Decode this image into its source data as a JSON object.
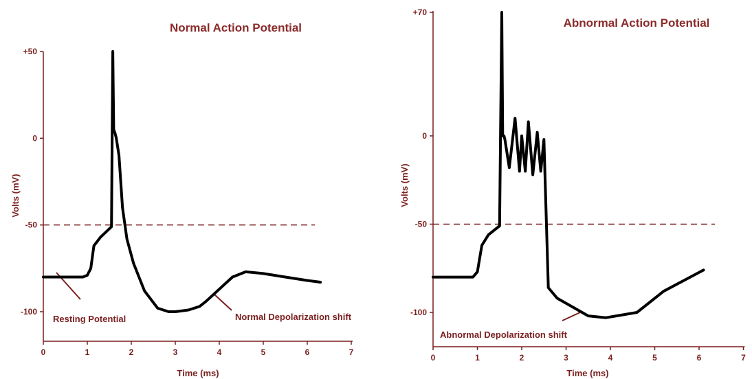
{
  "colors": {
    "axis": "#7a1f1f",
    "title": "#8b2a2a",
    "trace": "#000000",
    "threshold": "#7a1f1f"
  },
  "chart_data": [
    {
      "type": "line",
      "title": "Normal Action Potential",
      "xlabel": "Time (ms)",
      "ylabel": "Volts (mV)",
      "xlim": [
        0,
        7
      ],
      "ylim": [
        -120,
        50
      ],
      "x_ticks": [
        "0",
        "1",
        "2",
        "3",
        "4",
        "5",
        "6",
        "7"
      ],
      "y_ticks": [
        {
          "value": 50,
          "label": "+50"
        },
        {
          "value": 0,
          "label": "0"
        },
        {
          "value": -50,
          "label": "-50"
        },
        {
          "value": -100,
          "label": "-100"
        }
      ],
      "threshold": -50,
      "grid": false,
      "series": [
        {
          "x": [
            0,
            0.9,
            1.0,
            1.08,
            1.15,
            1.3,
            1.55,
            1.58,
            1.6,
            1.63,
            1.66,
            1.72,
            1.8,
            1.9,
            2.05,
            2.3,
            2.6,
            2.85,
            3.0,
            3.3,
            3.55,
            3.7,
            4.0,
            4.3,
            4.6,
            5.0,
            5.5,
            6.0,
            6.3
          ],
          "y": [
            -80,
            -80,
            -79,
            -75,
            -62,
            -57,
            -51,
            50,
            5,
            3,
            0,
            -10,
            -40,
            -58,
            -72,
            -88,
            -98,
            -100,
            -100,
            -99,
            -97,
            -94,
            -87,
            -80,
            -77,
            -78,
            -80,
            -82,
            -83
          ]
        }
      ],
      "annotations": [
        "Resting Potential",
        "Normal Depolarization shift"
      ]
    },
    {
      "type": "line",
      "title": "Abnormal Action Potential",
      "xlabel": "Time (ms)",
      "ylabel": "Volts (mV)",
      "xlim": [
        0,
        7
      ],
      "ylim": [
        -120,
        70
      ],
      "x_ticks": [
        "0",
        "1",
        "2",
        "3",
        "4",
        "5",
        "6",
        "7"
      ],
      "y_ticks": [
        {
          "value": 70,
          "label": "+70"
        },
        {
          "value": 0,
          "label": "0"
        },
        {
          "value": -50,
          "label": "-50"
        },
        {
          "value": -100,
          "label": "-100"
        }
      ],
      "threshold": -50,
      "grid": false,
      "series": [
        {
          "x": [
            0,
            0.9,
            1.0,
            1.1,
            1.25,
            1.5,
            1.55,
            1.57,
            1.6,
            1.62,
            1.72,
            1.85,
            1.95,
            2.0,
            2.08,
            2.15,
            2.25,
            2.35,
            2.43,
            2.5,
            2.6,
            2.8,
            3.5,
            3.9,
            4.6,
            5.2,
            5.8,
            6.1
          ],
          "y": [
            -80,
            -80,
            -77,
            -62,
            -56,
            -51,
            70,
            0,
            0,
            -2,
            -18,
            10,
            -20,
            0,
            -20,
            8,
            -22,
            2,
            -20,
            -2,
            -86,
            -92,
            -102,
            -103,
            -100,
            -88,
            -80,
            -76
          ]
        }
      ],
      "annotations": [
        "Abnormal Depolarization shift"
      ]
    }
  ]
}
